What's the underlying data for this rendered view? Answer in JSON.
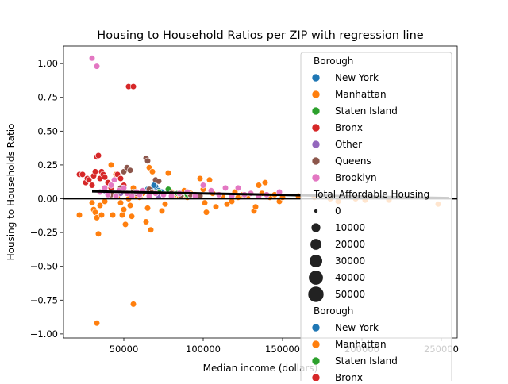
{
  "chart_data": {
    "type": "scatter",
    "title": "Housing to Household Ratios per ZIP with regression line",
    "xlabel": "Median income (dollars)",
    "ylabel": "Housing to Households Ratio",
    "xlim": [
      12000,
      260000
    ],
    "ylim": [
      -1.03,
      1.13
    ],
    "x_ticks": [
      50000,
      100000,
      150000,
      200000,
      250000
    ],
    "x_tick_labels": [
      "50000",
      "100000",
      "150000",
      "200000",
      "250000"
    ],
    "y_ticks": [
      -1.0,
      -0.75,
      -0.5,
      -0.25,
      0.0,
      0.25,
      0.5,
      0.75,
      1.0
    ],
    "y_tick_labels": [
      "−1.00",
      "−0.75",
      "−0.50",
      "−0.25",
      "0.00",
      "0.25",
      "0.50",
      "0.75",
      "1.00"
    ],
    "grid": false,
    "zero_line": 0,
    "regression_line": {
      "x": [
        30000,
        255000
      ],
      "y": [
        0.055,
        0.005
      ]
    },
    "legend_placement": "upper right",
    "legend": {
      "hue_title": "Borough",
      "hue_entries": [
        {
          "name": "New York",
          "color": "#1f77b4"
        },
        {
          "name": "Manhattan",
          "color": "#ff7f0e"
        },
        {
          "name": "Staten Island",
          "color": "#2ca02c"
        },
        {
          "name": "Bronx",
          "color": "#d62728"
        },
        {
          "name": "Other",
          "color": "#9467bd"
        },
        {
          "name": "Queens",
          "color": "#8c564b"
        },
        {
          "name": "Brooklyn",
          "color": "#e377c2"
        }
      ],
      "size_title": "Total Affordable Housing",
      "size_entries": [
        {
          "label": "0",
          "size": 0
        },
        {
          "label": "10000",
          "size": 10000
        },
        {
          "label": "20000",
          "size": 20000
        },
        {
          "label": "30000",
          "size": 30000
        },
        {
          "label": "40000",
          "size": 40000
        },
        {
          "label": "50000",
          "size": 50000
        }
      ],
      "repeat_title": "Borough",
      "repeat_entries": [
        {
          "name": "New York",
          "color": "#1f77b4"
        },
        {
          "name": "Manhattan",
          "color": "#ff7f0e"
        },
        {
          "name": "Staten Island",
          "color": "#2ca02c"
        },
        {
          "name": "Bronx",
          "color": "#d62728"
        }
      ]
    },
    "series": [
      {
        "name": "New York",
        "color": "#1f77b4",
        "points": [
          [
            65000,
            0.07
          ],
          [
            68000,
            0.08
          ],
          [
            70000,
            0.09
          ],
          [
            72000,
            0.06
          ],
          [
            74000,
            0.05
          ],
          [
            69000,
            0.1
          ]
        ]
      },
      {
        "name": "Manhattan",
        "color": "#ff7f0e",
        "points": [
          [
            33000,
            -0.92
          ],
          [
            56000,
            -0.78
          ],
          [
            34000,
            -0.26
          ],
          [
            22000,
            -0.12
          ],
          [
            30000,
            -0.03
          ],
          [
            31000,
            -0.08
          ],
          [
            32000,
            -0.1
          ],
          [
            33000,
            -0.14
          ],
          [
            35000,
            -0.05
          ],
          [
            36000,
            -0.12
          ],
          [
            37000,
            0.18
          ],
          [
            38000,
            -0.02
          ],
          [
            40000,
            0.03
          ],
          [
            42000,
            0.25
          ],
          [
            43000,
            -0.12
          ],
          [
            45000,
            0.18
          ],
          [
            46000,
            0.02
          ],
          [
            48000,
            -0.03
          ],
          [
            49000,
            -0.12
          ],
          [
            50000,
            -0.08
          ],
          [
            51000,
            -0.19
          ],
          [
            52000,
            0.22
          ],
          [
            53000,
            0.0
          ],
          [
            54000,
            -0.05
          ],
          [
            55000,
            -0.13
          ],
          [
            56000,
            0.08
          ],
          [
            58000,
            0.02
          ],
          [
            60000,
            0.01
          ],
          [
            62000,
            0.04
          ],
          [
            64000,
            -0.17
          ],
          [
            65000,
            -0.07
          ],
          [
            66000,
            0.23
          ],
          [
            67000,
            -0.23
          ],
          [
            68000,
            0.2
          ],
          [
            70000,
            0.04
          ],
          [
            72000,
            0.02
          ],
          [
            74000,
            -0.09
          ],
          [
            76000,
            -0.04
          ],
          [
            78000,
            0.19
          ],
          [
            80000,
            0.05
          ],
          [
            82000,
            0.03
          ],
          [
            85000,
            0.02
          ],
          [
            88000,
            0.06
          ],
          [
            90000,
            0.01
          ],
          [
            92000,
            0.04
          ],
          [
            95000,
            0.03
          ],
          [
            98000,
            0.15
          ],
          [
            100000,
            0.07
          ],
          [
            101000,
            -0.03
          ],
          [
            102000,
            -0.1
          ],
          [
            104000,
            0.14
          ],
          [
            106000,
            0.04
          ],
          [
            108000,
            -0.06
          ],
          [
            110000,
            0.03
          ],
          [
            112000,
            0.02
          ],
          [
            115000,
            -0.04
          ],
          [
            118000,
            -0.02
          ],
          [
            120000,
            0.05
          ],
          [
            122000,
            0.01
          ],
          [
            125000,
            0.03
          ],
          [
            128000,
            0.02
          ],
          [
            130000,
            0.04
          ],
          [
            132000,
            -0.09
          ],
          [
            133000,
            -0.06
          ],
          [
            135000,
            0.1
          ],
          [
            137000,
            0.04
          ],
          [
            139000,
            0.12
          ],
          [
            142000,
            0.01
          ],
          [
            145000,
            0.03
          ],
          [
            148000,
            -0.02
          ],
          [
            150000,
            0.01
          ],
          [
            160000,
            0.02
          ],
          [
            170000,
            0.01
          ],
          [
            180000,
            0.0
          ],
          [
            185000,
            -0.02
          ],
          [
            196000,
            0.0
          ],
          [
            202000,
            -0.01
          ],
          [
            217000,
            -0.01
          ],
          [
            248000,
            -0.04
          ]
        ]
      },
      {
        "name": "Staten Island",
        "color": "#2ca02c",
        "points": [
          [
            72000,
            0.05
          ],
          [
            78000,
            0.07
          ],
          [
            84000,
            0.04
          ],
          [
            90000,
            0.03
          ]
        ]
      },
      {
        "name": "Bronx",
        "color": "#d62728",
        "points": [
          [
            22000,
            0.18
          ],
          [
            24000,
            0.18
          ],
          [
            26000,
            0.12
          ],
          [
            27000,
            0.15
          ],
          [
            28000,
            0.14
          ],
          [
            30000,
            0.1
          ],
          [
            31000,
            0.17
          ],
          [
            32000,
            0.2
          ],
          [
            33000,
            0.31
          ],
          [
            34000,
            0.32
          ],
          [
            35000,
            0.15
          ],
          [
            36000,
            0.2
          ],
          [
            37000,
            0.18
          ],
          [
            38000,
            0.16
          ],
          [
            40000,
            0.12
          ],
          [
            42000,
            0.08
          ],
          [
            46000,
            0.18
          ],
          [
            48000,
            0.15
          ],
          [
            50000,
            0.1
          ],
          [
            53000,
            0.83
          ],
          [
            56000,
            0.83
          ]
        ]
      },
      {
        "name": "Other",
        "color": "#9467bd",
        "points": [
          [
            38000,
            0.06
          ],
          [
            48000,
            0.04
          ],
          [
            60000,
            0.03
          ],
          [
            72000,
            0.02
          ]
        ]
      },
      {
        "name": "Queens",
        "color": "#8c564b",
        "points": [
          [
            42000,
            0.03
          ],
          [
            48000,
            0.08
          ],
          [
            50000,
            0.2
          ],
          [
            52000,
            0.23
          ],
          [
            54000,
            0.21
          ],
          [
            56000,
            0.05
          ],
          [
            58000,
            0.04
          ],
          [
            62000,
            0.06
          ],
          [
            64000,
            0.3
          ],
          [
            65000,
            0.28
          ],
          [
            66000,
            0.07
          ],
          [
            68000,
            0.05
          ],
          [
            70000,
            0.14
          ],
          [
            72000,
            0.13
          ],
          [
            75000,
            0.03
          ],
          [
            80000,
            0.04
          ],
          [
            86000,
            0.02
          ],
          [
            92000,
            0.03
          ],
          [
            98000,
            0.02
          ]
        ]
      },
      {
        "name": "Brooklyn",
        "color": "#e377c2",
        "points": [
          [
            30000,
            1.04
          ],
          [
            33000,
            0.98
          ],
          [
            35000,
            0.05
          ],
          [
            38000,
            0.08
          ],
          [
            40000,
            0.03
          ],
          [
            42000,
            0.1
          ],
          [
            44000,
            0.14
          ],
          [
            45000,
            0.02
          ],
          [
            47000,
            0.06
          ],
          [
            50000,
            0.08
          ],
          [
            52000,
            0.04
          ],
          [
            55000,
            0.02
          ],
          [
            58000,
            0.05
          ],
          [
            60000,
            0.03
          ],
          [
            62000,
            0.06
          ],
          [
            66000,
            0.02
          ],
          [
            70000,
            0.04
          ],
          [
            75000,
            0.03
          ],
          [
            80000,
            0.02
          ],
          [
            85000,
            0.04
          ],
          [
            90000,
            0.05
          ],
          [
            95000,
            0.02
          ],
          [
            100000,
            0.1
          ],
          [
            105000,
            0.06
          ],
          [
            110000,
            0.03
          ],
          [
            114000,
            0.08
          ],
          [
            118000,
            0.02
          ],
          [
            122000,
            0.08
          ],
          [
            126000,
            0.03
          ],
          [
            130000,
            0.04
          ],
          [
            135000,
            0.02
          ],
          [
            140000,
            0.03
          ],
          [
            148000,
            0.05
          ]
        ]
      }
    ]
  }
}
